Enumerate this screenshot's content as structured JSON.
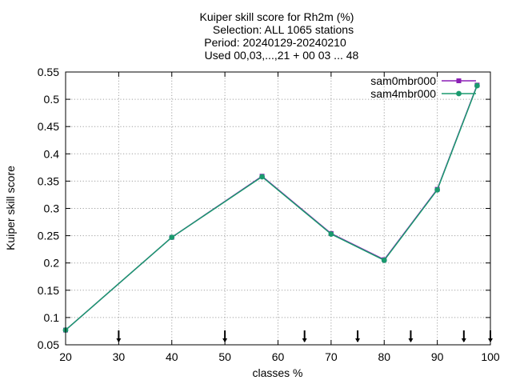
{
  "chart_data": {
    "type": "line",
    "title_lines": [
      "Kuiper skill score  for Rh2m (%)",
      "Selection: ALL    1065 stations",
      "Period: 20240129-20240210",
      "Used 00,03,...,21 + 00 03 ... 48"
    ],
    "xlabel": "classes %",
    "ylabel": "Kuiper skill score",
    "xlim": [
      20,
      100
    ],
    "ylim": [
      0.05,
      0.55
    ],
    "xticks": [
      "20",
      "30",
      "40",
      "50",
      "60",
      "70",
      "80",
      "90",
      "100"
    ],
    "yticks": [
      "0.05",
      "0.1",
      "0.15",
      "0.2",
      "0.25",
      "0.3",
      "0.35",
      "0.4",
      "0.45",
      "0.5",
      "0.55"
    ],
    "grid": true,
    "legend_position": "top-right",
    "series": [
      {
        "name": "sam0mbr000",
        "color": "#8b1fb5",
        "x": [
          20,
          40,
          57,
          70,
          80,
          90,
          97.5
        ],
        "y": [
          0.077,
          0.247,
          0.359,
          0.254,
          0.206,
          0.335,
          0.526
        ]
      },
      {
        "name": "sam4mbr000",
        "color": "#1a9a6e",
        "x": [
          20,
          40,
          57,
          70,
          80,
          90,
          97.5
        ],
        "y": [
          0.077,
          0.247,
          0.358,
          0.253,
          0.205,
          0.334,
          0.525
        ]
      }
    ],
    "class_markers": [
      30,
      50,
      65,
      75,
      85,
      95,
      100
    ]
  }
}
